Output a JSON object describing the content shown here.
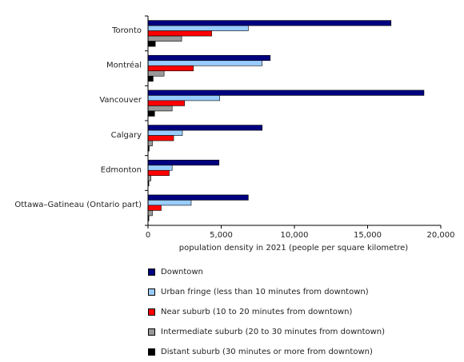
{
  "chart_data": {
    "type": "bar",
    "orientation": "horizontal",
    "categories": [
      "Toronto",
      "Montréal",
      "Vancouver",
      "Calgary",
      "Edmonton",
      "Ottawa–Gatineau (Ontario part)"
    ],
    "series": [
      {
        "name": "Downtown",
        "color": "#000080",
        "values": [
          16600,
          8350,
          18850,
          7800,
          4850,
          6850
        ]
      },
      {
        "name": "Urban fringe (less than 10 minutes from downtown)",
        "color": "#99ccff",
        "values": [
          6850,
          7800,
          4900,
          2350,
          1650,
          2950
        ]
      },
      {
        "name": "Near suburb (10 to 20 minutes from downtown)",
        "color": "#ff0000",
        "values": [
          4350,
          3100,
          2500,
          1750,
          1450,
          900
        ]
      },
      {
        "name": "Intermediate suburb (20 to 30 minutes from downtown)",
        "color": "#999999",
        "values": [
          2300,
          1100,
          1650,
          300,
          200,
          300
        ]
      },
      {
        "name": "Distant suburb (30 minutes or more from downtown)",
        "color": "#000000",
        "values": [
          500,
          350,
          450,
          80,
          60,
          60
        ]
      }
    ],
    "xlabel": "population density in 2021 (people per square kilometre)",
    "ylabel": "",
    "xlim": [
      0,
      20000
    ],
    "xticks": [
      0,
      5000,
      10000,
      15000,
      20000
    ],
    "xtick_labels": [
      "0",
      "5,000",
      "10,000",
      "15,000",
      "20,000"
    ],
    "grid": false,
    "legend_position": "bottom"
  }
}
